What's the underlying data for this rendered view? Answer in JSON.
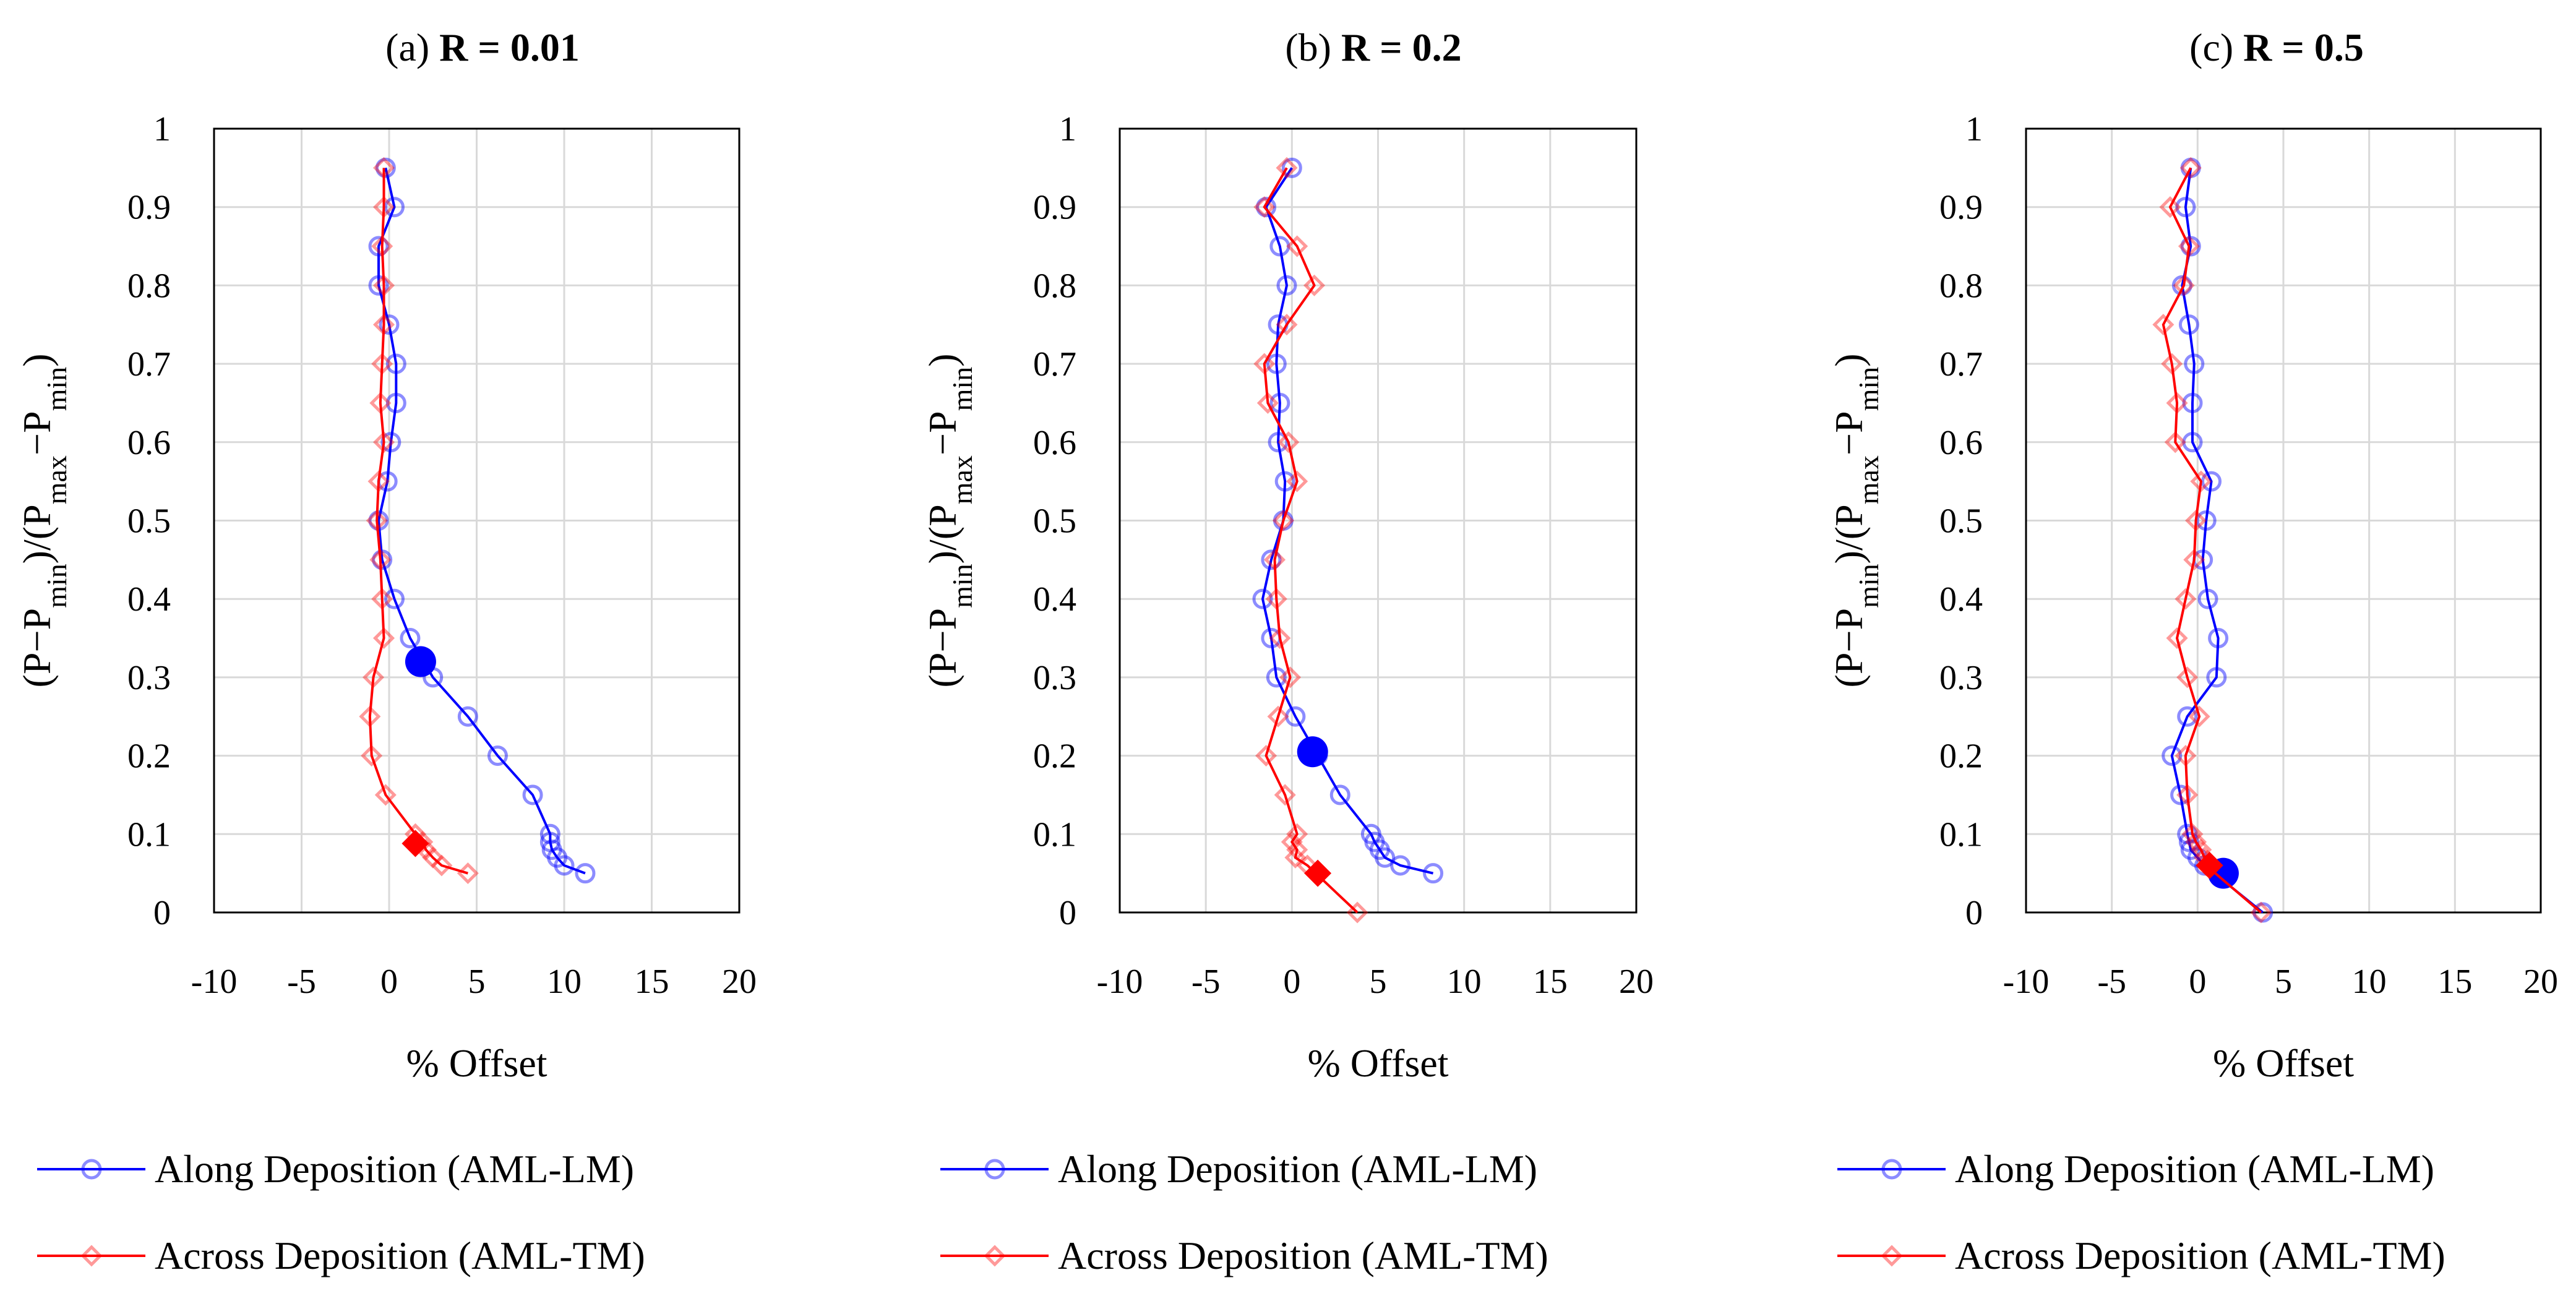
{
  "chart_data": [
    {
      "type": "line",
      "panel_label": "(a)",
      "title": "R = 0.01",
      "xlabel": "% Offset",
      "ylabel": "(P−P",
      "ylabel_parts": [
        "(P−P",
        "min",
        ")/(P",
        "max",
        "−P",
        "min",
        ")"
      ],
      "xlim": [
        -10,
        20
      ],
      "ylim": [
        0,
        1
      ],
      "xticks": [
        "-10",
        "-5",
        "0",
        "5",
        "10",
        "15",
        "20"
      ],
      "yticks": [
        "0",
        "0.1",
        "0.2",
        "0.3",
        "0.4",
        "0.5",
        "0.6",
        "0.7",
        "0.8",
        "0.9",
        "1"
      ],
      "series": [
        {
          "name": "Along Deposition (AML-LM)",
          "color": "#0000ff",
          "marker": "circle",
          "points": [
            [
              -0.2,
              0.95
            ],
            [
              0.3,
              0.9
            ],
            [
              -0.6,
              0.85
            ],
            [
              -0.6,
              0.8
            ],
            [
              0.0,
              0.75
            ],
            [
              0.4,
              0.7
            ],
            [
              0.4,
              0.65
            ],
            [
              0.1,
              0.6
            ],
            [
              -0.1,
              0.55
            ],
            [
              -0.6,
              0.5
            ],
            [
              -0.4,
              0.45
            ],
            [
              0.3,
              0.4
            ],
            [
              1.2,
              0.35
            ],
            [
              2.5,
              0.3
            ],
            [
              4.5,
              0.25
            ],
            [
              6.2,
              0.2
            ],
            [
              8.2,
              0.15
            ],
            [
              9.2,
              0.1
            ],
            [
              9.2,
              0.09
            ],
            [
              9.3,
              0.08
            ],
            [
              9.6,
              0.07
            ],
            [
              10.0,
              0.06
            ],
            [
              11.2,
              0.05
            ]
          ],
          "highlight": [
            1.8,
            0.32
          ]
        },
        {
          "name": "Across Deposition (AML-TM)",
          "color": "#ff0000",
          "marker": "diamond",
          "points": [
            [
              -0.3,
              0.95
            ],
            [
              -0.3,
              0.9
            ],
            [
              -0.4,
              0.85
            ],
            [
              -0.3,
              0.8
            ],
            [
              -0.3,
              0.75
            ],
            [
              -0.4,
              0.7
            ],
            [
              -0.5,
              0.65
            ],
            [
              -0.3,
              0.6
            ],
            [
              -0.6,
              0.55
            ],
            [
              -0.7,
              0.5
            ],
            [
              -0.5,
              0.45
            ],
            [
              -0.4,
              0.4
            ],
            [
              -0.3,
              0.35
            ],
            [
              -0.9,
              0.3
            ],
            [
              -1.1,
              0.25
            ],
            [
              -1.0,
              0.2
            ],
            [
              -0.2,
              0.15
            ],
            [
              1.5,
              0.1
            ],
            [
              1.9,
              0.09
            ],
            [
              2.1,
              0.08
            ],
            [
              2.5,
              0.07
            ],
            [
              3.0,
              0.06
            ],
            [
              4.5,
              0.05
            ]
          ],
          "highlight": [
            1.5,
            0.088
          ]
        }
      ]
    },
    {
      "type": "line",
      "panel_label": "(b)",
      "title": "R = 0.2",
      "xlabel": "% Offset",
      "ylabel": "(P−P",
      "ylabel_parts": [
        "(P−P",
        "min",
        ")/(P",
        "max",
        "−P",
        "min",
        ")"
      ],
      "xlim": [
        -10,
        20
      ],
      "ylim": [
        0,
        1
      ],
      "xticks": [
        "-10",
        "-5",
        "0",
        "5",
        "10",
        "15",
        "20"
      ],
      "yticks": [
        "0",
        "0.1",
        "0.2",
        "0.3",
        "0.4",
        "0.5",
        "0.6",
        "0.7",
        "0.8",
        "0.9",
        "1"
      ],
      "series": [
        {
          "name": "Along Deposition (AML-LM)",
          "color": "#0000ff",
          "marker": "circle",
          "points": [
            [
              0.0,
              0.95
            ],
            [
              -1.5,
              0.9
            ],
            [
              -0.7,
              0.85
            ],
            [
              -0.3,
              0.8
            ],
            [
              -0.8,
              0.75
            ],
            [
              -0.9,
              0.7
            ],
            [
              -0.7,
              0.65
            ],
            [
              -0.8,
              0.6
            ],
            [
              -0.4,
              0.55
            ],
            [
              -0.5,
              0.5
            ],
            [
              -1.2,
              0.45
            ],
            [
              -1.7,
              0.4
            ],
            [
              -1.2,
              0.35
            ],
            [
              -0.9,
              0.3
            ],
            [
              0.2,
              0.25
            ],
            [
              1.5,
              0.2
            ],
            [
              2.8,
              0.15
            ],
            [
              4.6,
              0.1
            ],
            [
              4.8,
              0.09
            ],
            [
              5.1,
              0.08
            ],
            [
              5.4,
              0.07
            ],
            [
              6.3,
              0.06
            ],
            [
              8.2,
              0.05
            ]
          ],
          "highlight": [
            1.2,
            0.205
          ]
        },
        {
          "name": "Across Deposition (AML-TM)",
          "color": "#ff0000",
          "marker": "diamond",
          "points": [
            [
              -0.3,
              0.95
            ],
            [
              -1.6,
              0.9
            ],
            [
              0.3,
              0.85
            ],
            [
              1.3,
              0.8
            ],
            [
              -0.3,
              0.75
            ],
            [
              -1.6,
              0.7
            ],
            [
              -1.4,
              0.65
            ],
            [
              -0.2,
              0.6
            ],
            [
              0.3,
              0.55
            ],
            [
              -0.5,
              0.5
            ],
            [
              -1.0,
              0.45
            ],
            [
              -0.9,
              0.4
            ],
            [
              -0.7,
              0.35
            ],
            [
              -0.1,
              0.3
            ],
            [
              -0.8,
              0.25
            ],
            [
              -1.5,
              0.2
            ],
            [
              -0.4,
              0.15
            ],
            [
              0.3,
              0.1
            ],
            [
              0.0,
              0.09
            ],
            [
              0.3,
              0.08
            ],
            [
              0.2,
              0.07
            ],
            [
              0.9,
              0.06
            ],
            [
              3.8,
              0.0
            ]
          ],
          "highlight": [
            1.5,
            0.05
          ]
        }
      ]
    },
    {
      "type": "line",
      "panel_label": "(c)",
      "title": "R = 0.5",
      "xlabel": "% Offset",
      "ylabel": "(P−P",
      "ylabel_parts": [
        "(P−P",
        "min",
        ")/(P",
        "max",
        "−P",
        "min",
        ")"
      ],
      "xlim": [
        -10,
        20
      ],
      "ylim": [
        0,
        1
      ],
      "xticks": [
        "-10",
        "-5",
        "0",
        "5",
        "10",
        "15",
        "20"
      ],
      "yticks": [
        "0",
        "0.1",
        "0.2",
        "0.3",
        "0.4",
        "0.5",
        "0.6",
        "0.7",
        "0.8",
        "0.9",
        "1"
      ],
      "series": [
        {
          "name": "Along Deposition (AML-LM)",
          "color": "#0000ff",
          "marker": "circle",
          "points": [
            [
              -0.4,
              0.95
            ],
            [
              -0.7,
              0.9
            ],
            [
              -0.4,
              0.85
            ],
            [
              -0.9,
              0.8
            ],
            [
              -0.5,
              0.75
            ],
            [
              -0.2,
              0.7
            ],
            [
              -0.3,
              0.65
            ],
            [
              -0.3,
              0.6
            ],
            [
              0.8,
              0.55
            ],
            [
              0.5,
              0.5
            ],
            [
              0.3,
              0.45
            ],
            [
              0.6,
              0.4
            ],
            [
              1.2,
              0.35
            ],
            [
              1.1,
              0.3
            ],
            [
              -0.6,
              0.25
            ],
            [
              -1.5,
              0.2
            ],
            [
              -1.0,
              0.15
            ],
            [
              -0.6,
              0.1
            ],
            [
              -0.5,
              0.09
            ],
            [
              -0.4,
              0.08
            ],
            [
              0.0,
              0.07
            ],
            [
              0.4,
              0.06
            ],
            [
              3.8,
              0.0
            ]
          ],
          "highlight": [
            1.5,
            0.05
          ]
        },
        {
          "name": "Across Deposition (AML-TM)",
          "color": "#ff0000",
          "marker": "diamond",
          "points": [
            [
              -0.4,
              0.95
            ],
            [
              -1.6,
              0.9
            ],
            [
              -0.5,
              0.85
            ],
            [
              -0.8,
              0.8
            ],
            [
              -2.0,
              0.75
            ],
            [
              -1.5,
              0.7
            ],
            [
              -1.2,
              0.65
            ],
            [
              -1.3,
              0.6
            ],
            [
              0.2,
              0.55
            ],
            [
              -0.1,
              0.5
            ],
            [
              -0.2,
              0.45
            ],
            [
              -0.7,
              0.4
            ],
            [
              -1.2,
              0.35
            ],
            [
              -0.6,
              0.3
            ],
            [
              0.1,
              0.25
            ],
            [
              -0.7,
              0.2
            ],
            [
              -0.6,
              0.15
            ],
            [
              -0.3,
              0.1
            ],
            [
              -0.1,
              0.09
            ],
            [
              0.2,
              0.08
            ],
            [
              0.4,
              0.07
            ],
            [
              0.5,
              0.06
            ],
            [
              3.7,
              0.0
            ]
          ],
          "highlight": [
            0.7,
            0.06
          ]
        }
      ]
    }
  ]
}
